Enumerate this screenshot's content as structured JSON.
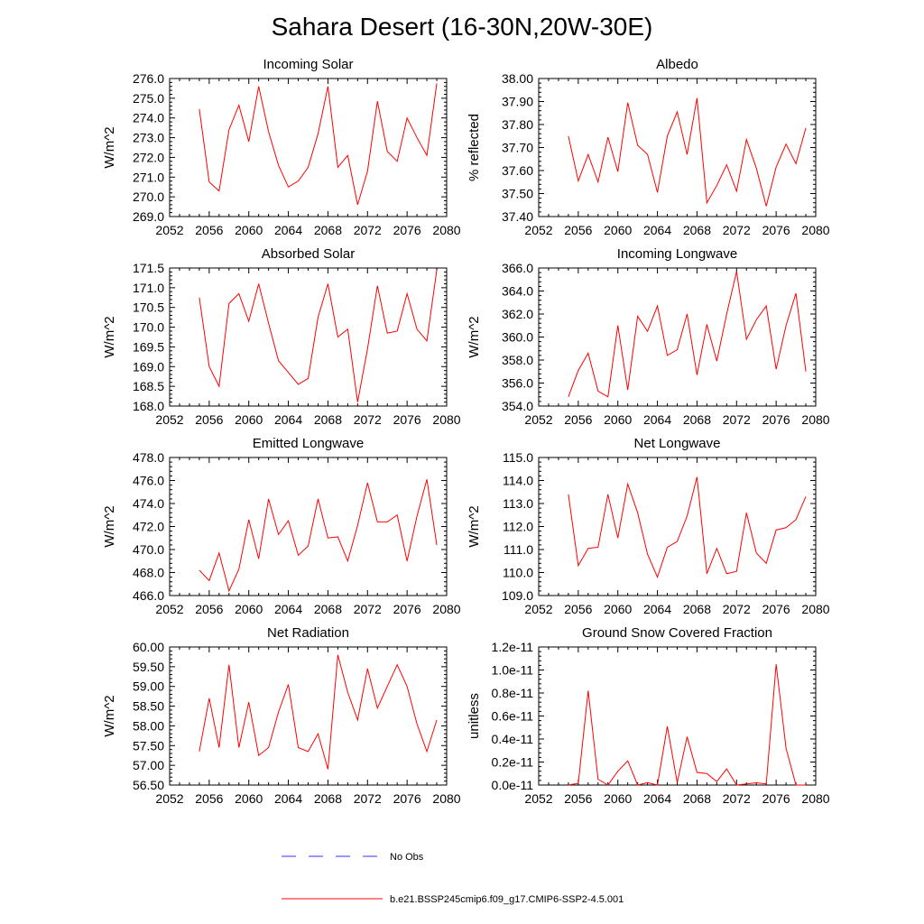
{
  "title": "Sahara Desert (16-30N,20W-30E)",
  "legend": [
    {
      "label": "No Obs",
      "color": "#0000ff",
      "style": "dashed"
    },
    {
      "label": "b.e21.BSSP245cmip6.f09_g17.CMIP6-SSP2-4.5.001",
      "color": "#ff0000",
      "style": "solid"
    }
  ],
  "chart_data": [
    {
      "type": "line",
      "title": "Incoming Solar",
      "ylabel": "W/m^2",
      "xlim": [
        2052,
        2080
      ],
      "xticks": [
        2052,
        2056,
        2060,
        2064,
        2068,
        2072,
        2076,
        2080
      ],
      "ylim": [
        269.0,
        276.0
      ],
      "yticks": [
        "269.0",
        "270.0",
        "271.0",
        "272.0",
        "273.0",
        "274.0",
        "275.0",
        "276.0"
      ],
      "x": [
        2055,
        2056,
        2057,
        2058,
        2059,
        2060,
        2061,
        2062,
        2063,
        2064,
        2065,
        2066,
        2067,
        2068,
        2069,
        2070,
        2071,
        2072,
        2073,
        2074,
        2075,
        2076,
        2077,
        2078,
        2079
      ],
      "series": [
        {
          "values": [
            274.45,
            270.75,
            270.3,
            273.4,
            274.65,
            272.8,
            275.6,
            273.3,
            271.6,
            270.5,
            270.8,
            271.5,
            273.2,
            275.6,
            271.5,
            272.1,
            269.6,
            271.3,
            274.85,
            272.3,
            271.8,
            274.0,
            273.0,
            272.1,
            275.75
          ]
        }
      ]
    },
    {
      "type": "line",
      "title": "Albedo",
      "ylabel": "% reflected",
      "xlim": [
        2052,
        2080
      ],
      "xticks": [
        2052,
        2056,
        2060,
        2064,
        2068,
        2072,
        2076,
        2080
      ],
      "ylim": [
        37.4,
        38.0
      ],
      "yticks": [
        "37.40",
        "37.50",
        "37.60",
        "37.70",
        "37.80",
        "37.90",
        "38.00"
      ],
      "x": [
        2055,
        2056,
        2057,
        2058,
        2059,
        2060,
        2061,
        2062,
        2063,
        2064,
        2065,
        2066,
        2067,
        2068,
        2069,
        2070,
        2071,
        2072,
        2073,
        2074,
        2075,
        2076,
        2077,
        2078,
        2079
      ],
      "series": [
        {
          "values": [
            37.75,
            37.555,
            37.67,
            37.55,
            37.745,
            37.595,
            37.895,
            37.71,
            37.67,
            37.505,
            37.75,
            37.855,
            37.67,
            37.915,
            37.46,
            37.535,
            37.625,
            37.51,
            37.735,
            37.61,
            37.445,
            37.615,
            37.715,
            37.63,
            37.785
          ]
        }
      ]
    },
    {
      "type": "line",
      "title": "Absorbed Solar",
      "ylabel": "W/m^2",
      "xlim": [
        2052,
        2080
      ],
      "xticks": [
        2052,
        2056,
        2060,
        2064,
        2068,
        2072,
        2076,
        2080
      ],
      "ylim": [
        168.0,
        171.5
      ],
      "yticks": [
        "168.0",
        "168.5",
        "169.0",
        "169.5",
        "170.0",
        "170.5",
        "171.0",
        "171.5"
      ],
      "x": [
        2055,
        2056,
        2057,
        2058,
        2059,
        2060,
        2061,
        2062,
        2063,
        2064,
        2065,
        2066,
        2067,
        2068,
        2069,
        2070,
        2071,
        2072,
        2073,
        2074,
        2075,
        2076,
        2077,
        2078,
        2079
      ],
      "series": [
        {
          "values": [
            170.75,
            169.0,
            168.5,
            170.6,
            170.85,
            170.15,
            171.1,
            170.1,
            169.15,
            168.85,
            168.55,
            168.7,
            170.25,
            171.1,
            169.75,
            169.95,
            168.1,
            169.45,
            171.05,
            169.85,
            169.9,
            170.85,
            169.95,
            169.65,
            171.45
          ]
        }
      ]
    },
    {
      "type": "line",
      "title": "Incoming Longwave",
      "ylabel": "W/m^2",
      "xlim": [
        2052,
        2080
      ],
      "xticks": [
        2052,
        2056,
        2060,
        2064,
        2068,
        2072,
        2076,
        2080
      ],
      "ylim": [
        354.0,
        366.0
      ],
      "yticks": [
        "354.0",
        "356.0",
        "358.0",
        "360.0",
        "362.0",
        "364.0",
        "366.0"
      ],
      "x": [
        2055,
        2056,
        2057,
        2058,
        2059,
        2060,
        2061,
        2062,
        2063,
        2064,
        2065,
        2066,
        2067,
        2068,
        2069,
        2070,
        2071,
        2072,
        2073,
        2074,
        2075,
        2076,
        2077,
        2078,
        2079
      ],
      "series": [
        {
          "values": [
            354.8,
            357.1,
            358.6,
            355.3,
            354.8,
            361.0,
            355.4,
            361.8,
            360.5,
            362.7,
            358.4,
            358.9,
            362.0,
            356.7,
            361.1,
            357.9,
            362.0,
            365.7,
            359.8,
            361.5,
            362.7,
            357.2,
            361.0,
            363.8,
            357.0
          ]
        }
      ]
    },
    {
      "type": "line",
      "title": "Emitted Longwave",
      "ylabel": "W/m^2",
      "xlim": [
        2052,
        2080
      ],
      "xticks": [
        2052,
        2056,
        2060,
        2064,
        2068,
        2072,
        2076,
        2080
      ],
      "ylim": [
        466.0,
        478.0
      ],
      "yticks": [
        "466.0",
        "468.0",
        "470.0",
        "472.0",
        "474.0",
        "476.0",
        "478.0"
      ],
      "x": [
        2055,
        2056,
        2057,
        2058,
        2059,
        2060,
        2061,
        2062,
        2063,
        2064,
        2065,
        2066,
        2067,
        2068,
        2069,
        2070,
        2071,
        2072,
        2073,
        2074,
        2075,
        2076,
        2077,
        2078,
        2079
      ],
      "series": [
        {
          "values": [
            468.2,
            467.3,
            469.7,
            466.4,
            468.3,
            472.6,
            469.2,
            474.4,
            471.3,
            472.5,
            469.5,
            470.3,
            474.4,
            471.0,
            471.1,
            469.0,
            472.1,
            475.8,
            472.4,
            472.4,
            473.0,
            469.0,
            472.9,
            476.1,
            470.4
          ]
        }
      ]
    },
    {
      "type": "line",
      "title": "Net Longwave",
      "ylabel": "W/m^2",
      "xlim": [
        2052,
        2080
      ],
      "xticks": [
        2052,
        2056,
        2060,
        2064,
        2068,
        2072,
        2076,
        2080
      ],
      "ylim": [
        109.0,
        115.0
      ],
      "yticks": [
        "109.0",
        "110.0",
        "111.0",
        "112.0",
        "113.0",
        "114.0",
        "115.0"
      ],
      "x": [
        2055,
        2056,
        2057,
        2058,
        2059,
        2060,
        2061,
        2062,
        2063,
        2064,
        2065,
        2066,
        2067,
        2068,
        2069,
        2070,
        2071,
        2072,
        2073,
        2074,
        2075,
        2076,
        2077,
        2078,
        2079
      ],
      "series": [
        {
          "values": [
            113.4,
            110.3,
            111.05,
            111.1,
            113.4,
            111.5,
            113.85,
            112.6,
            110.8,
            109.8,
            111.1,
            111.35,
            112.45,
            114.15,
            109.95,
            111.05,
            109.95,
            110.05,
            112.6,
            110.85,
            110.4,
            111.85,
            111.95,
            112.3,
            113.3
          ]
        }
      ]
    },
    {
      "type": "line",
      "title": "Net Radiation",
      "ylabel": "W/m^2",
      "xlim": [
        2052,
        2080
      ],
      "xticks": [
        2052,
        2056,
        2060,
        2064,
        2068,
        2072,
        2076,
        2080
      ],
      "ylim": [
        56.5,
        60.0
      ],
      "yticks": [
        "56.50",
        "57.00",
        "57.50",
        "58.00",
        "58.50",
        "59.00",
        "59.50",
        "60.00"
      ],
      "x": [
        2055,
        2056,
        2057,
        2058,
        2059,
        2060,
        2061,
        2062,
        2063,
        2064,
        2065,
        2066,
        2067,
        2068,
        2069,
        2070,
        2071,
        2072,
        2073,
        2074,
        2075,
        2076,
        2077,
        2078,
        2079
      ],
      "series": [
        {
          "values": [
            57.35,
            58.7,
            57.45,
            59.55,
            57.45,
            58.6,
            57.25,
            57.45,
            58.35,
            59.05,
            57.45,
            57.35,
            57.8,
            56.9,
            59.8,
            58.85,
            58.15,
            59.45,
            58.45,
            59.0,
            59.55,
            59.0,
            58.05,
            57.35,
            58.15
          ]
        }
      ]
    },
    {
      "type": "line",
      "title": "Ground Snow Covered Fraction",
      "ylabel": "unitless",
      "xlim": [
        2052,
        2080
      ],
      "xticks": [
        2052,
        2056,
        2060,
        2064,
        2068,
        2072,
        2076,
        2080
      ],
      "ylim": [
        0,
        1.2e-11
      ],
      "yticks": [
        "0.0e-11",
        "0.2e-11",
        "0.4e-11",
        "0.6e-11",
        "0.8e-11",
        "1.0e-11",
        "1.2e-11"
      ],
      "x": [
        2055,
        2056,
        2057,
        2058,
        2059,
        2060,
        2061,
        2062,
        2063,
        2064,
        2065,
        2066,
        2067,
        2068,
        2069,
        2070,
        2071,
        2072,
        2073,
        2074,
        2075,
        2076,
        2077,
        2078,
        2079
      ],
      "series": [
        {
          "values": [
            0.0,
            1.5e-13,
            8.2e-12,
            5e-13,
            0.0,
            1.2e-12,
            2.1e-12,
            0.0,
            2e-13,
            0.0,
            5.1e-12,
            2e-13,
            4.2e-12,
            1.1e-12,
            1e-12,
            3e-13,
            1.4e-12,
            0.0,
            1e-13,
            2e-13,
            1e-13,
            1.05e-11,
            3.2e-12,
            0.0,
            0.0
          ]
        }
      ]
    }
  ]
}
